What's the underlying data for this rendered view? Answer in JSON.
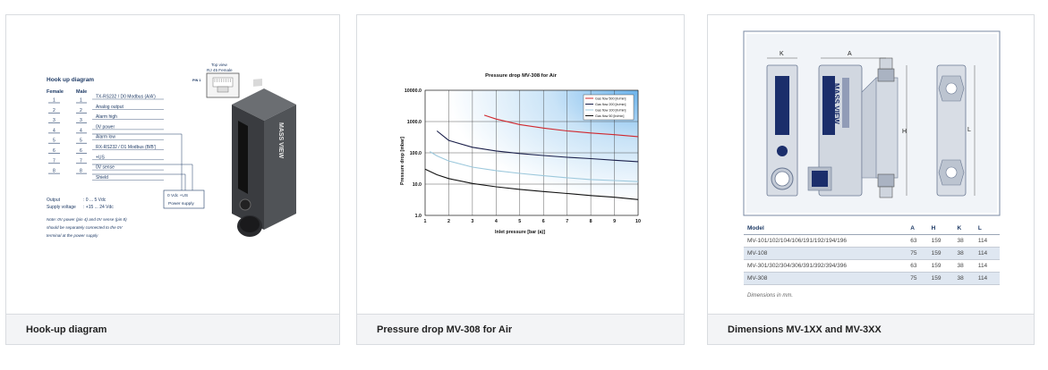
{
  "cards": [
    {
      "caption": "Hook-up diagram"
    },
    {
      "caption": "Pressure drop MV-308 for Air"
    },
    {
      "caption": "Dimensions MV-1XX and MV-3XX"
    }
  ],
  "hookup": {
    "title": "Hook up diagram",
    "female_label": "Female",
    "male_label": "Male",
    "pins": [
      "1",
      "2",
      "3",
      "4",
      "5",
      "6",
      "7",
      "8"
    ],
    "signals": [
      "TX-RS232 / D0 Modbus (A/A')",
      "Analog output",
      "Alarm high",
      "0V power",
      "Alarm low",
      "RX-RS232 / D1 Modbus (B/B')",
      "+US",
      "0V sense",
      "Shield"
    ],
    "top_view_line1": "Top view",
    "top_view_line2": "RJ 45 Female",
    "pin1_label": "PIN 1",
    "supply_box_line1": "0 Vdc   +US",
    "supply_box_line2": "Power supply",
    "output_label": "Output",
    "output_value": ": 0 ... 5 Vdc",
    "supply_label": "Supply voltage",
    "supply_value": ": +15 ... 24 Vdc",
    "note_line1": "Note: 0V power (pin 4) and 0V sense (pin 8)",
    "note_line2": "should be separately connected to the 0V",
    "note_line3": "terminal at the power supply",
    "device_brand": "MASS VIEW"
  },
  "chart_data": {
    "type": "line",
    "title": "Pressure drop MV-308 for Air",
    "xlabel": "Inlet pressure [bar (a)]",
    "ylabel": "Pressure drop [mbar]",
    "x_ticks": [
      "1",
      "2",
      "3",
      "4",
      "5",
      "6",
      "7",
      "8",
      "9",
      "10"
    ],
    "y_ticks": [
      "1.0",
      "10.0",
      "100.0",
      "1000.0",
      "10000.0"
    ],
    "xlim": [
      1,
      10
    ],
    "ylim": [
      1,
      10000
    ],
    "yscale": "log",
    "grid": true,
    "legend_position": "top-right",
    "series": [
      {
        "name": "Gas flow 500 [ln/min]",
        "color": "#d0282e",
        "x": [
          3.5,
          4,
          5,
          6,
          7,
          8,
          9,
          10
        ],
        "y": [
          1600,
          1200,
          800,
          620,
          500,
          430,
          380,
          330
        ]
      },
      {
        "name": "Gas flow 200 [ln/min]",
        "color": "#1a1f4a",
        "x": [
          1.5,
          2,
          3,
          4,
          5,
          6,
          7,
          8,
          9,
          10
        ],
        "y": [
          500,
          250,
          150,
          115,
          95,
          82,
          72,
          65,
          58,
          52
        ]
      },
      {
        "name": "Gas flow 100 [ln/min]",
        "color": "#9cc8dc",
        "x": [
          1.2,
          1.5,
          2,
          3,
          4,
          5,
          6,
          7,
          8,
          9,
          10
        ],
        "y": [
          110,
          80,
          55,
          35,
          27,
          22,
          18.5,
          16,
          14,
          13,
          12
        ]
      },
      {
        "name": "Gas flow 50 [ln/min]",
        "color": "#111111",
        "x": [
          1,
          1.5,
          2,
          3,
          4,
          5,
          6,
          7,
          8,
          9,
          10
        ],
        "y": [
          30,
          20,
          15,
          10.5,
          8.2,
          6.8,
          5.8,
          5,
          4.3,
          3.8,
          3.2
        ]
      }
    ]
  },
  "dimensions": {
    "label_k": "K",
    "label_a": "A",
    "label_h": "H",
    "label_l": "L",
    "device_brand": "MASS VIEW",
    "table_headers": [
      "Model",
      "A",
      "H",
      "K",
      "L"
    ],
    "rows": [
      [
        "MV-101/102/104/106/191/192/194/196",
        "63",
        "159",
        "38",
        "114"
      ],
      [
        "MV-108",
        "75",
        "159",
        "38",
        "114"
      ],
      [
        "MV-301/302/304/306/391/392/394/396",
        "63",
        "159",
        "38",
        "114"
      ],
      [
        "MV-308",
        "75",
        "159",
        "38",
        "114"
      ]
    ],
    "note": "Dimensions in mm."
  }
}
